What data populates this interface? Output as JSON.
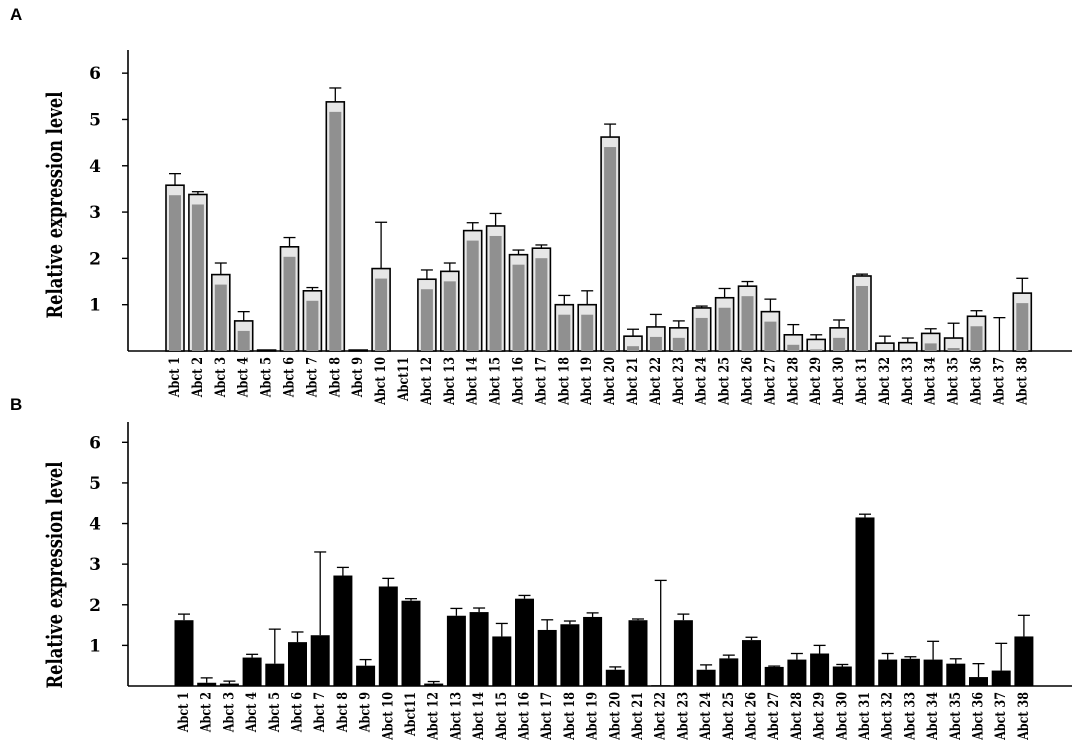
{
  "chart_data": [
    {
      "panel": "A",
      "type": "bar",
      "ylabel": "Relative expression level",
      "ylim": [
        0,
        6.5
      ],
      "yticks": [
        "1",
        "2",
        "3",
        "4",
        "5",
        "6"
      ],
      "bar_color": "#909090",
      "categories": [
        "Abct 1",
        "Abct 2",
        "Abct 3",
        "Abct 4",
        "Abct 5",
        "Abct 6",
        "Abct 7",
        "Abct 8",
        "Abct 9",
        "Abct 10",
        "Abct11",
        "Abct 12",
        "Abct 13",
        "Abct 14",
        "Abct 15",
        "Abct 16",
        "Abct 17",
        "Abct 18",
        "Abct 19",
        "Abct 20",
        "Abct 21",
        "Abct 22",
        "Abct 23",
        "Abct 24",
        "Abct 25",
        "Abct 26",
        "Abct 27",
        "Abct 28",
        "Abct 29",
        "Abct 30",
        "Abct 31",
        "Abct 32",
        "Abct 33",
        "Abct 34",
        "Abct 35",
        "Abct 36",
        "Abct 37",
        "Abct 38"
      ],
      "values": [
        3.58,
        3.38,
        1.65,
        0.65,
        0.02,
        2.25,
        1.3,
        5.38,
        0.02,
        1.78,
        0,
        1.55,
        1.72,
        2.6,
        2.7,
        2.08,
        2.22,
        1.0,
        1.0,
        4.62,
        0.32,
        0.52,
        0.5,
        0.93,
        1.15,
        1.4,
        0.85,
        0.35,
        0.25,
        0.5,
        1.62,
        0.17,
        0.18,
        0.38,
        0.28,
        0.75,
        0,
        1.25
      ],
      "errors": [
        0.25,
        0.06,
        0.25,
        0.2,
        0,
        0.2,
        0.07,
        0.3,
        0,
        1.0,
        0,
        0.2,
        0.18,
        0.17,
        0.27,
        0.1,
        0.07,
        0.2,
        0.3,
        0.28,
        0.15,
        0.27,
        0.15,
        0.04,
        0.2,
        0.1,
        0.27,
        0.22,
        0.1,
        0.17,
        0.04,
        0.15,
        0.1,
        0.1,
        0.32,
        0.12,
        0.72,
        0.32
      ]
    },
    {
      "panel": "B",
      "type": "bar",
      "ylabel": "Relative expression level",
      "ylim": [
        0,
        6.5
      ],
      "yticks": [
        "1",
        "2",
        "3",
        "4",
        "5",
        "6"
      ],
      "bar_color": "#000000",
      "categories": [
        "Abct 1",
        "Abct 2",
        "Abct 3",
        "Abct 4",
        "Abct 5",
        "Abct 6",
        "Abct 7",
        "Abct 8",
        "Abct 9",
        "Abct 10",
        "Abct11",
        "Abct 12",
        "Abct 13",
        "Abct 14",
        "Abct 15",
        "Abct 16",
        "Abct 17",
        "Abct 18",
        "Abct 19",
        "Abct 20",
        "Abct 21",
        "Abct 22",
        "Abct 23",
        "Abct 24",
        "Abct 25",
        "Abct 26",
        "Abct 27",
        "Abct 28",
        "Abct 29",
        "Abct 30",
        "Abct 31",
        "Abct 32",
        "Abct 33",
        "Abct 34",
        "Abct 35",
        "Abct 36",
        "Abct 37",
        "Abct 38"
      ],
      "values": [
        1.62,
        0.08,
        0.06,
        0.7,
        0.55,
        1.08,
        1.25,
        2.72,
        0.5,
        2.45,
        2.1,
        0.06,
        1.73,
        1.82,
        1.22,
        2.15,
        1.38,
        1.52,
        1.7,
        0.4,
        1.62,
        0.02,
        1.62,
        0.4,
        0.68,
        1.13,
        0.47,
        0.65,
        0.8,
        0.48,
        4.15,
        0.65,
        0.67,
        0.65,
        0.55,
        0.22,
        0.38,
        1.22
      ],
      "errors": [
        0.15,
        0.12,
        0.06,
        0.08,
        0.85,
        0.25,
        2.05,
        0.2,
        0.15,
        0.2,
        0.05,
        0.05,
        0.18,
        0.1,
        0.32,
        0.08,
        0.25,
        0.08,
        0.1,
        0.07,
        0.03,
        2.58,
        0.15,
        0.12,
        0.08,
        0.07,
        0.02,
        0.15,
        0.2,
        0.05,
        0.08,
        0.15,
        0.05,
        0.45,
        0.12,
        0.33,
        0.67,
        0.52
      ]
    }
  ]
}
